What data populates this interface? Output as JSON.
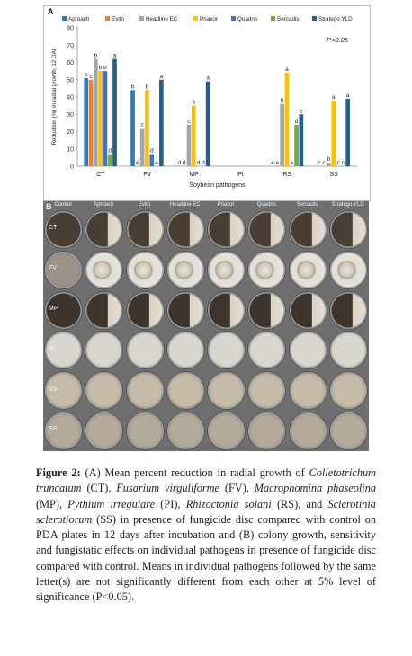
{
  "panel_a_label": "A",
  "panel_b_label": "B",
  "chart_data": {
    "type": "bar",
    "categories": [
      "CT",
      "FV",
      "MP",
      "PI",
      "RS",
      "SS"
    ],
    "series": [
      {
        "name": "Aproach",
        "color": "#2e7bc4",
        "values": [
          51,
          44,
          0,
          0,
          0,
          0
        ],
        "letters": [
          "c",
          "b",
          "d",
          "",
          "e",
          "c"
        ]
      },
      {
        "name": "Evito",
        "color": "#ed7d31",
        "values": [
          50,
          0,
          0,
          0,
          0,
          0
        ],
        "letters": [
          "c",
          "e",
          "d",
          "",
          "e",
          "c"
        ]
      },
      {
        "name": "Headline EC",
        "color": "#a5a5a5",
        "values": [
          62,
          22,
          24,
          0,
          36,
          2
        ],
        "letters": [
          "b",
          "c",
          "c",
          "",
          "b",
          "b"
        ]
      },
      {
        "name": "Priaxor",
        "color": "#ffc000",
        "values": [
          55,
          44,
          35,
          0,
          54,
          38
        ],
        "letters": [
          "b",
          "b",
          "b",
          "",
          "a",
          "a"
        ]
      },
      {
        "name": "Quadris",
        "color": "#4472c4",
        "values": [
          55,
          7,
          0,
          0,
          0,
          0
        ],
        "letters": [
          "b",
          "d",
          "d",
          "",
          "e",
          "c"
        ]
      },
      {
        "name": "Sercadis",
        "color": "#70ad47",
        "values": [
          7,
          0,
          0,
          0,
          24,
          0
        ],
        "letters": [
          "d",
          "e",
          "d",
          "",
          "d",
          "c"
        ]
      },
      {
        "name": "Stratego YLD",
        "color": "#255e91",
        "values": [
          62,
          50,
          49,
          0,
          30,
          39
        ],
        "letters": [
          "a",
          "a",
          "a",
          "",
          "c",
          "a"
        ]
      }
    ],
    "ylabel": "Reduction (%) in radial growth, 12 DAI",
    "xlabel": "Soybean pathogens",
    "ylim": [
      0,
      80
    ],
    "yticks": [
      0,
      10,
      20,
      30,
      40,
      50,
      60,
      70,
      80
    ],
    "annotation": "P<0.05",
    "legend_position": "top"
  },
  "plates": {
    "columns": [
      "Control",
      "Aproach",
      "Evito",
      "Headline EC",
      "Priaxor",
      "Quadris",
      "Sercadis",
      "Stratego YLD"
    ],
    "rows": [
      "CT",
      "FV",
      "MP",
      "PI",
      "RS",
      "SS"
    ]
  },
  "caption": {
    "figure_label": "Figure 2:",
    "text_html": " (A) Mean percent reduction in radial growth of <i>Colletotrichum truncatum</i> (CT), <i>Fusarium virguliforme</i> (FV), <i>Macrophomina phaseolina</i> (MP), <i>Pythium irregulare</i> (PI), <i>Rhizoctonia solani</i> (RS), and <i>Sclerotinia sclerotiorum</i> (SS) in presence of fungicide disc compared with control on PDA plates in 12 days after incubation and (B) colony growth, sensitivity and fungistatic effects on individual pathogens in presence of fungicide disc compared with control. Means in individual pathogens followed by the same letter(s) are not significantly different from each other at 5% level of significance (P<0.05)."
  }
}
